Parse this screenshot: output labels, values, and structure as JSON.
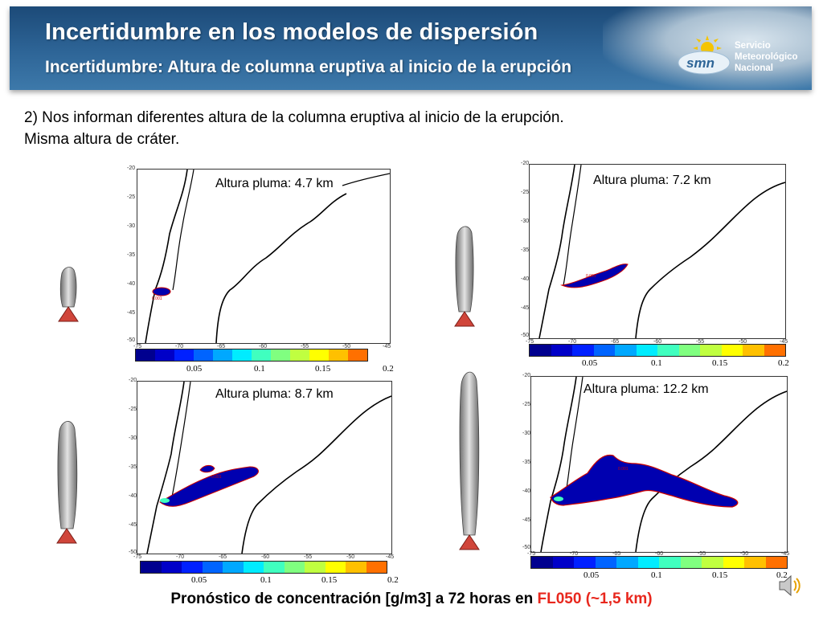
{
  "header": {
    "title": "Incertidumbre en los modelos de dispersión",
    "subtitle": "Incertidumbre: Altura de columna eruptiva al inicio de la erupción",
    "logo": {
      "abbr": "smn",
      "line1": "Servicio",
      "line2": "Meteorológico",
      "line3": "Nacional"
    }
  },
  "intro": {
    "line1": "2) Nos informan diferentes altura de la columna eruptiva al inicio de la erupción.",
    "line2": "Misma altura de cráter."
  },
  "axes": {
    "y_ticks": [
      "-20",
      "-25",
      "-30",
      "-35",
      "-40",
      "-45",
      "-50"
    ],
    "x_ticks": [
      "-75",
      "-70",
      "-65",
      "-60",
      "-55",
      "-50",
      "-45"
    ]
  },
  "colorbar": {
    "colors": [
      "#00008f",
      "#0000c8",
      "#0020ff",
      "#0064ff",
      "#00a8ff",
      "#00ecff",
      "#40ffbf",
      "#80ff80",
      "#c0ff40",
      "#ffff00",
      "#ffc000",
      "#ff7000"
    ],
    "labels": [
      "0.05",
      "0.1",
      "0.15",
      "0.2"
    ]
  },
  "panels": [
    {
      "label": "Altura pluma: 4.7 km",
      "contour": "0.001"
    },
    {
      "label": "Altura pluma: 7.2  km",
      "contour": "0.001"
    },
    {
      "label": "Altura pluma: 8.7 km",
      "contour": "0.001"
    },
    {
      "label": "Altura pluma: 12.2 km",
      "contour": "0.001"
    }
  ],
  "footer": {
    "prefix": "Pronóstico de concentración [g/m3] a 72 horas en ",
    "level": "FL050",
    "suffix": "  (~1,5 km)"
  },
  "icons": [
    "volcano-plume-icon",
    "speaker-icon",
    "smn-logo-icon"
  ]
}
